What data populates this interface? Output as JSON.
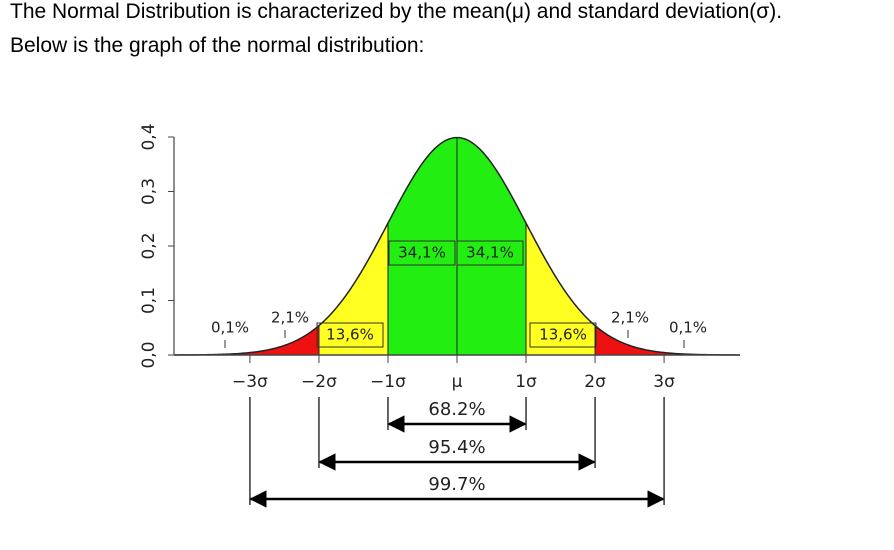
{
  "text": {
    "line1": "The Normal Distribution is characterized by the mean(μ) and standard deviation(σ).",
    "line2": "Below is the graph of the normal distribution:"
  },
  "figure": {
    "ylim": [
      0,
      0.4
    ],
    "yticks": [
      {
        "value": 0,
        "label": "0,0"
      },
      {
        "value": 0.1,
        "label": "0,1"
      },
      {
        "value": 0.2,
        "label": "0,2"
      },
      {
        "value": 0.3,
        "label": "0,3"
      },
      {
        "value": 0.4,
        "label": "0,4"
      }
    ],
    "xlim": [
      -4.1,
      4.1
    ],
    "xticks": [
      {
        "value": -3,
        "label": "−3σ"
      },
      {
        "value": -2,
        "label": "−2σ"
      },
      {
        "value": -1,
        "label": "−1σ"
      },
      {
        "value": 0,
        "label": "μ"
      },
      {
        "value": 1,
        "label": "1σ"
      },
      {
        "value": 2,
        "label": "2σ"
      },
      {
        "value": 3,
        "label": "3σ"
      }
    ],
    "region_labels": [
      "0,1%",
      "2,1%",
      "13,6%",
      "34,1%",
      "34,1%",
      "13,6%",
      "2,1%",
      "0,1%"
    ],
    "ranges": [
      "68.2%",
      "95.4%",
      "99.7%"
    ]
  }
}
